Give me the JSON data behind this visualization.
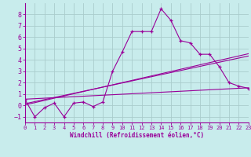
{
  "xlabel": "Windchill (Refroidissement éolien,°C)",
  "bg_color": "#c8ecec",
  "line_color": "#990099",
  "grid_color": "#aacccc",
  "x_data": [
    0,
    1,
    2,
    3,
    4,
    5,
    6,
    7,
    8,
    9,
    10,
    11,
    12,
    13,
    14,
    15,
    16,
    17,
    18,
    19,
    20,
    21,
    22,
    23
  ],
  "y_data": [
    0.5,
    -1.0,
    -0.2,
    0.2,
    -1.0,
    0.2,
    0.3,
    -0.1,
    0.3,
    3.0,
    4.7,
    6.5,
    6.5,
    6.5,
    8.5,
    7.5,
    5.7,
    5.5,
    4.5,
    4.5,
    3.4,
    2.0,
    1.7,
    1.5
  ],
  "xlim": [
    0,
    23
  ],
  "ylim": [
    -1.5,
    9.0
  ],
  "yticks": [
    -1,
    0,
    1,
    2,
    3,
    4,
    5,
    6,
    7,
    8
  ],
  "xticks": [
    0,
    1,
    2,
    3,
    4,
    5,
    6,
    7,
    8,
    9,
    10,
    11,
    12,
    13,
    14,
    15,
    16,
    17,
    18,
    19,
    20,
    21,
    22,
    23
  ],
  "reg_line1": [
    0.0,
    0.55,
    23.0,
    1.55
  ],
  "reg_line2": [
    0.0,
    0.15,
    23.0,
    4.35
  ],
  "reg_line3": [
    0.0,
    0.05,
    23.0,
    4.55
  ]
}
